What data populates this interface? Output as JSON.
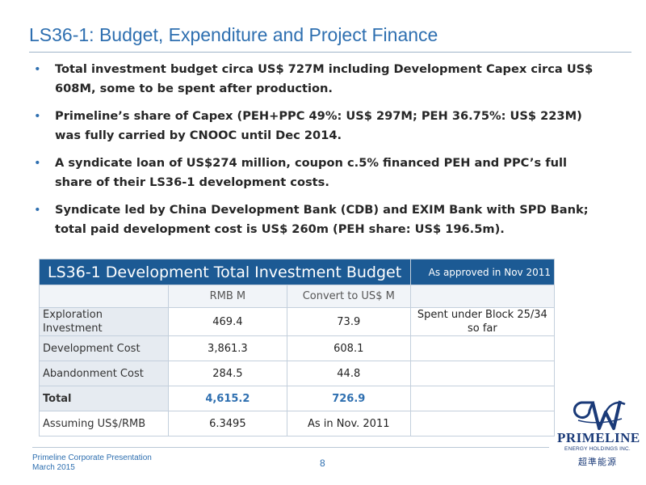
{
  "title": "LS36-1: Budget, Expenditure and Project Finance",
  "bullets": [
    "Total investment budget circa US$ 727M including Development Capex circa US$ 608M, some to be spent after production.",
    "Primeline’s share of Capex (PEH+PPC 49%: US$ 297M; PEH 36.75%: US$ 223M) was fully carried by CNOOC until Dec 2014.",
    "A syndicate loan of US$274 million, coupon c.5% financed PEH and PPC’s full share of their LS36-1 development costs.",
    "Syndicate led by China Development Bank (CDB) and EXIM Bank with SPD Bank; total paid development cost is US$ 260m (PEH share: US$ 196.5m)."
  ],
  "table": {
    "title": "LS36-1 Development Total Investment Budget",
    "note": "As approved in Nov 2011",
    "columns": [
      "",
      "RMB M",
      "Convert to US$ M",
      ""
    ],
    "rows": [
      {
        "label": "Exploration Investment",
        "rmb": "469.4",
        "usd": "73.9",
        "note": "Spent under Block 25/34 so far"
      },
      {
        "label": "Development Cost",
        "rmb": "3,861.3",
        "usd": "608.1",
        "note": ""
      },
      {
        "label": "Abandonment Cost",
        "rmb": "284.5",
        "usd": "44.8",
        "note": ""
      },
      {
        "label": "Total",
        "rmb": "4,615.2",
        "usd": "726.9",
        "note": ""
      },
      {
        "label": "Assuming US$/RMB",
        "rmb": "6.3495",
        "usd": "As in Nov. 2011",
        "note": ""
      }
    ]
  },
  "footer": {
    "line1": "Primeline Corporate Presentation",
    "line2": "March 2015",
    "page": "8"
  },
  "logo": {
    "name": "PRIMELINE",
    "sub": "ENERGY HOLDINGS INC.",
    "cn": "超準能源",
    "color": "#1a3a78"
  },
  "colors": {
    "accent": "#2e6fb0",
    "table_header": "#1c5a94"
  }
}
